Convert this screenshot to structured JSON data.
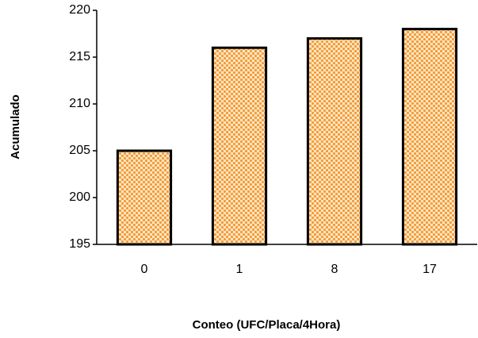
{
  "chart_data": {
    "type": "bar",
    "x_label": "Conteo (UFC/Placa/4Hora)",
    "y_label": "Acumulado",
    "categories": [
      "0",
      "1",
      "8",
      "17"
    ],
    "values": [
      205,
      216,
      217,
      218
    ],
    "color": "#f39a35",
    "ylim": [
      195,
      220
    ],
    "yticks": [
      195,
      200,
      205,
      210,
      215,
      220
    ],
    "grid": false
  }
}
